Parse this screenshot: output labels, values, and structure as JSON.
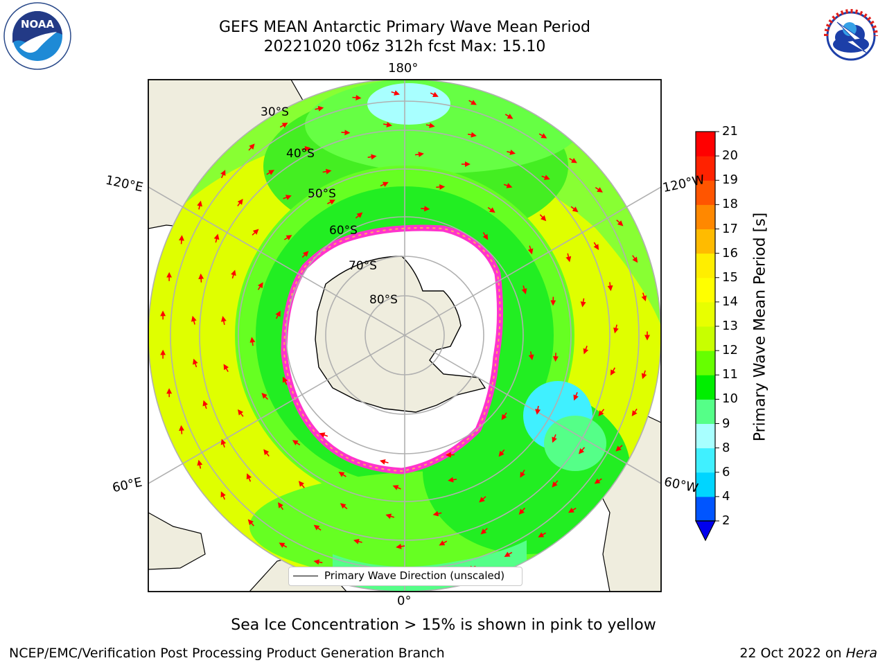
{
  "title": {
    "line1": "GEFS MEAN Antarctic Primary Wave Mean Period",
    "line2": "20221020 t06z 312h fcst   Max: 15.10"
  },
  "logos": {
    "left": "NOAA",
    "right": "NATIONAL WEATHER SERVICE",
    "left_icon": "noaa-logo-icon",
    "right_icon": "nws-logo-icon"
  },
  "map": {
    "projection": "south-polar-stereographic",
    "longitude_labels": {
      "top": "180°",
      "bottom": "0°",
      "upper_left": "120°E",
      "upper_right": "120°W",
      "lower_left": "60°E",
      "lower_right": "60°W"
    },
    "latitude_labels": [
      "30°S",
      "40°S",
      "50°S",
      "60°S",
      "70°S",
      "80°S"
    ],
    "legend": "Primary Wave Direction (unscaled)",
    "arrow_color": "#ff0000",
    "ice_edge_colors": [
      "#ff00ff",
      "#ff66cc",
      "#ffb000"
    ]
  },
  "colorbar": {
    "label": "Primary Wave Mean Period [s]",
    "ticks": [
      "2",
      "4",
      "6",
      "8",
      "9",
      "10",
      "11",
      "12",
      "13",
      "14",
      "15",
      "16",
      "17",
      "18",
      "19",
      "20",
      "21"
    ],
    "colors": [
      "#0055ff",
      "#00d5ff",
      "#40f0ff",
      "#a8ffff",
      "#55ff88",
      "#00ee00",
      "#66ff00",
      "#c8ff00",
      "#e8ff00",
      "#ffff00",
      "#ffee00",
      "#ffbb00",
      "#ff8800",
      "#ff5500",
      "#ff2200",
      "#ff0000"
    ],
    "extend_color": "#0000ee"
  },
  "caption": "Sea Ice Concentration > 15% is shown in pink to yellow",
  "footer": {
    "left": "NCEP/EMC/Verification Post Processing Product Generation Branch",
    "right_date": "22 Oct 2022 on ",
    "right_host": "Hera"
  }
}
